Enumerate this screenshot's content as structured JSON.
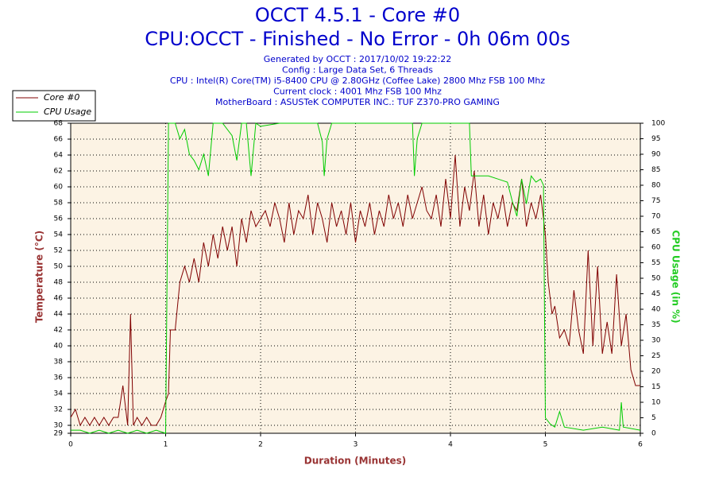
{
  "chart_data": {
    "type": "line",
    "title": "OCCT 4.5.1 - Core #0",
    "subtitle": "CPU:OCCT - Finished - No Error - 0h 06m 00s",
    "info_lines": [
      "Generated by OCCT : 2017/10/02 19:22:22",
      "Config : Large Data Set, 6 Threads",
      "CPU : Intel(R) Core(TM) i5-8400 CPU @ 2.80GHz (Coffee Lake) 2800 Mhz FSB 100 Mhz",
      "Current clock : 4001 Mhz FSB 100 Mhz",
      "MotherBoard : ASUSTeK COMPUTER INC.: TUF Z370-PRO GAMING"
    ],
    "x_label": "Duration (Minutes)",
    "y_label": "Temperature (°C)",
    "y2_label": "CPU Usage (in %)",
    "xlim": [
      0,
      6
    ],
    "xticks": [
      0,
      1,
      2,
      3,
      4,
      5,
      6
    ],
    "ylim": [
      29,
      68
    ],
    "yticks": [
      29,
      30,
      32,
      34,
      36,
      38,
      40,
      42,
      44,
      46,
      48,
      50,
      52,
      54,
      56,
      58,
      60,
      62,
      64,
      66,
      68
    ],
    "y2lim": [
      0,
      100
    ],
    "y2ticks": [
      0,
      5,
      10,
      15,
      20,
      25,
      30,
      35,
      40,
      45,
      50,
      55,
      60,
      65,
      70,
      75,
      80,
      85,
      90,
      95,
      100
    ],
    "grid": true,
    "legend": "top-left",
    "series": [
      {
        "name": "Core #0",
        "color": "#800000",
        "x": [
          0,
          0.05,
          0.1,
          0.15,
          0.2,
          0.25,
          0.3,
          0.35,
          0.4,
          0.45,
          0.5,
          0.55,
          0.6,
          0.63,
          0.66,
          0.7,
          0.75,
          0.8,
          0.85,
          0.9,
          0.95,
          1.0,
          1.03,
          1.05,
          1.1,
          1.15,
          1.2,
          1.25,
          1.3,
          1.35,
          1.4,
          1.45,
          1.5,
          1.55,
          1.6,
          1.65,
          1.7,
          1.75,
          1.8,
          1.85,
          1.9,
          1.95,
          2.0,
          2.05,
          2.1,
          2.15,
          2.2,
          2.25,
          2.3,
          2.35,
          2.4,
          2.45,
          2.5,
          2.55,
          2.6,
          2.65,
          2.7,
          2.75,
          2.8,
          2.85,
          2.9,
          2.95,
          3.0,
          3.05,
          3.1,
          3.15,
          3.2,
          3.25,
          3.3,
          3.35,
          3.4,
          3.45,
          3.5,
          3.55,
          3.6,
          3.65,
          3.7,
          3.75,
          3.8,
          3.85,
          3.9,
          3.95,
          4.0,
          4.05,
          4.1,
          4.15,
          4.2,
          4.25,
          4.3,
          4.35,
          4.4,
          4.45,
          4.5,
          4.55,
          4.6,
          4.65,
          4.7,
          4.75,
          4.8,
          4.85,
          4.9,
          4.95,
          5.0,
          5.03,
          5.07,
          5.1,
          5.15,
          5.2,
          5.25,
          5.3,
          5.35,
          5.4,
          5.45,
          5.5,
          5.55,
          5.6,
          5.65,
          5.7,
          5.75,
          5.8,
          5.85,
          5.9,
          5.95,
          6.0
        ],
        "values": [
          31,
          32,
          30,
          31,
          30,
          31,
          30,
          31,
          30,
          31,
          31,
          35,
          30,
          44,
          30,
          31,
          30,
          31,
          30,
          30,
          31,
          33,
          34,
          42,
          42,
          48,
          50,
          48,
          51,
          48,
          53,
          50,
          54,
          51,
          55,
          52,
          55,
          50,
          56,
          53,
          57,
          55,
          56,
          57,
          55,
          58,
          56,
          53,
          58,
          54,
          57,
          56,
          59,
          54,
          58,
          56,
          53,
          58,
          55,
          57,
          54,
          58,
          53,
          57,
          55,
          58,
          54,
          57,
          55,
          59,
          56,
          58,
          55,
          59,
          56,
          58,
          60,
          57,
          56,
          59,
          55,
          61,
          56,
          64,
          55,
          60,
          57,
          62,
          55,
          59,
          54,
          58,
          56,
          59,
          55,
          58,
          57,
          61,
          55,
          58,
          56,
          59,
          54,
          48,
          44,
          45,
          41,
          42,
          40,
          47,
          42,
          39,
          52,
          40,
          50,
          39,
          43,
          39,
          49,
          40,
          44,
          37,
          35,
          35
        ]
      },
      {
        "name": "CPU Usage",
        "color": "#00cc00",
        "axis": "y2",
        "x": [
          0,
          0.1,
          0.2,
          0.3,
          0.4,
          0.5,
          0.6,
          0.7,
          0.8,
          0.9,
          1.0,
          1.03,
          1.1,
          1.15,
          1.2,
          1.25,
          1.3,
          1.35,
          1.4,
          1.45,
          1.5,
          1.6,
          1.7,
          1.75,
          1.8,
          1.85,
          1.9,
          1.95,
          2.0,
          2.2,
          2.4,
          2.6,
          2.65,
          2.67,
          2.7,
          2.75,
          3.0,
          3.3,
          3.6,
          3.62,
          3.65,
          3.7,
          4.0,
          4.2,
          4.22,
          4.4,
          4.5,
          4.6,
          4.65,
          4.7,
          4.75,
          4.8,
          4.85,
          4.9,
          4.95,
          4.98,
          5.0,
          5.05,
          5.1,
          5.15,
          5.2,
          5.4,
          5.6,
          5.78,
          5.8,
          5.82,
          6.0
        ],
        "values": [
          1,
          1,
          0,
          1,
          0,
          1,
          0,
          1,
          0,
          1,
          0,
          100,
          100,
          95,
          98,
          90,
          88,
          85,
          90,
          83,
          100,
          100,
          96,
          88,
          100,
          100,
          83,
          100,
          99,
          100,
          100,
          100,
          94,
          83,
          95,
          100,
          100,
          100,
          100,
          83,
          95,
          100,
          100,
          100,
          83,
          83,
          82,
          81,
          75,
          70,
          82,
          74,
          83,
          81,
          82,
          80,
          5,
          3,
          2,
          7,
          2,
          1,
          2,
          1,
          10,
          2,
          1
        ]
      }
    ]
  }
}
